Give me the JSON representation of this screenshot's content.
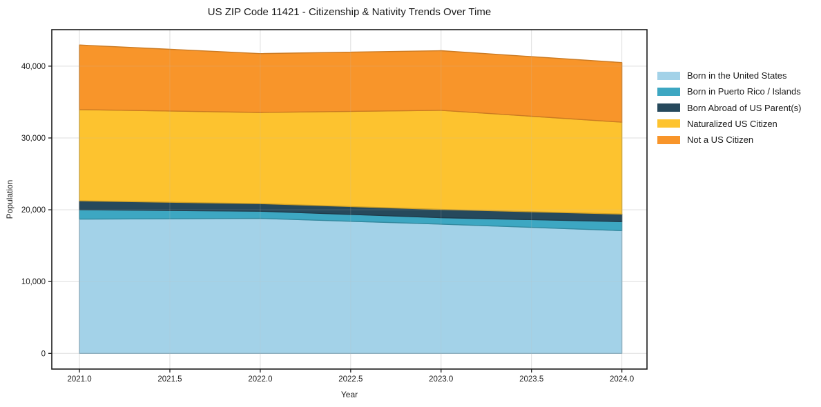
{
  "title": "US ZIP Code 11421 - Citizenship & Nativity Trends Over Time",
  "chart_data": {
    "type": "area",
    "stacked": true,
    "title": "US ZIP Code 11421 - Citizenship & Nativity Trends Over Time",
    "xlabel": "Year",
    "ylabel": "Population",
    "x": [
      2021,
      2022,
      2023,
      2024
    ],
    "series": [
      {
        "name": "Born in the United States",
        "color": "#a3d2e8",
        "values": [
          18700,
          18800,
          18000,
          17100
        ]
      },
      {
        "name": "Born in Puerto Rico / Islands",
        "color": "#3da7c2",
        "values": [
          1300,
          1000,
          900,
          1250
        ]
      },
      {
        "name": "Born Abroad of US Parent(s)",
        "color": "#26495c",
        "values": [
          1250,
          1050,
          1150,
          1050
        ]
      },
      {
        "name": "Naturalized US Citizen",
        "color": "#fdc32f",
        "values": [
          12700,
          12700,
          13800,
          12800
        ]
      },
      {
        "name": "Not a US Citizen",
        "color": "#f8952a",
        "values": [
          9000,
          8200,
          8300,
          8300
        ]
      }
    ],
    "stack_totals": [
      42950,
      41750,
      42150,
      40500
    ],
    "xlim": [
      2020.847,
      2024.139
    ],
    "ylim": [
      -2180,
      45080
    ],
    "x_ticks": [
      2021.0,
      2021.5,
      2022.0,
      2022.5,
      2023.0,
      2023.5,
      2024.0
    ],
    "x_tick_labels": [
      "2021.0",
      "2021.5",
      "2022.0",
      "2022.5",
      "2023.0",
      "2023.5",
      "2024.0"
    ],
    "y_ticks": [
      0,
      10000,
      20000,
      30000,
      40000
    ],
    "y_tick_labels": [
      "0",
      "10,000",
      "20,000",
      "30,000",
      "40,000"
    ],
    "grid": true,
    "legend_position": "outside-right",
    "colors": {
      "grid": "#e7e7e7",
      "axis_frame": "#1a1a1a",
      "background": "#ffffff"
    }
  }
}
